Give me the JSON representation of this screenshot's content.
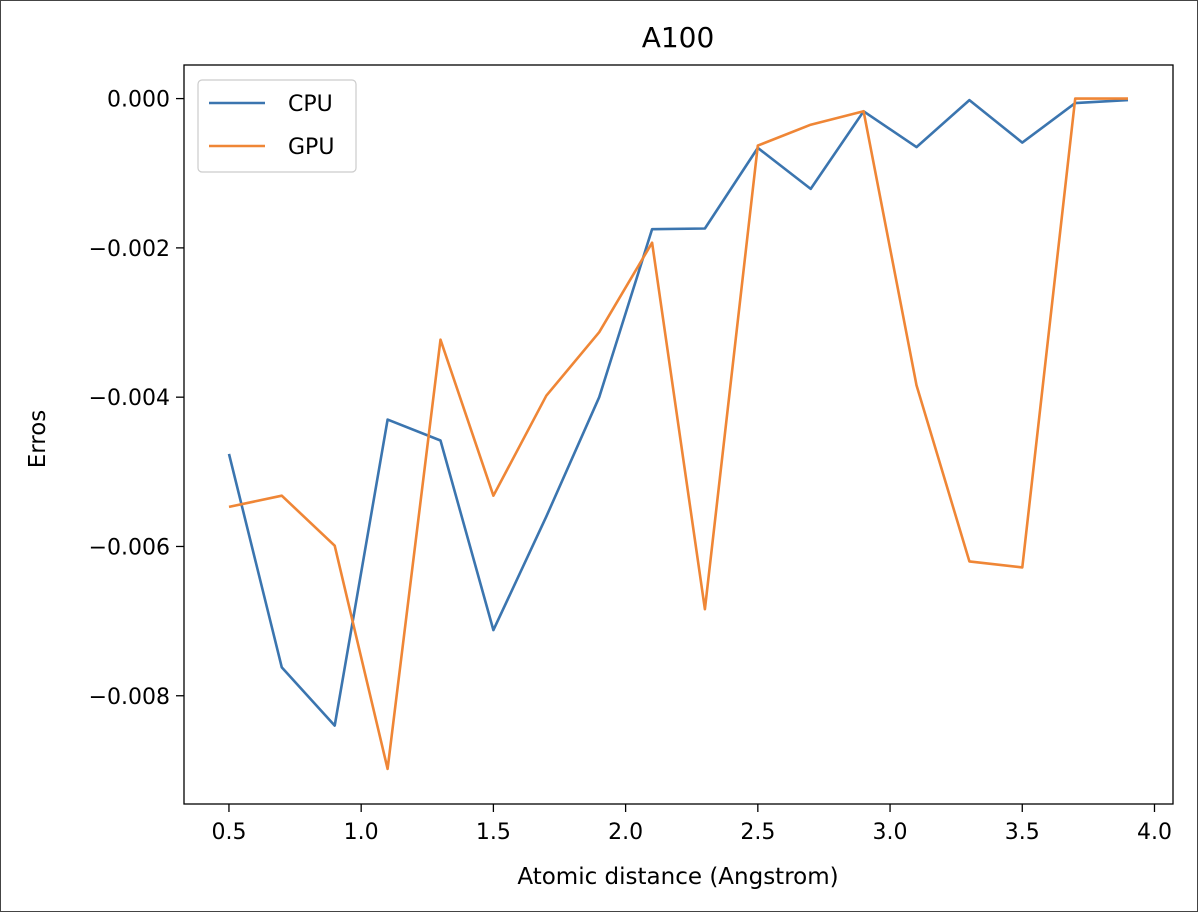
{
  "chart_data": {
    "type": "line",
    "title": "A100",
    "xlabel": "Atomic distance (Angstrom)",
    "ylabel": "Erros",
    "xlim": [
      0.33,
      4.07
    ],
    "ylim": [
      -0.00945,
      0.00045
    ],
    "xticks": [
      0.5,
      1.0,
      1.5,
      2.0,
      2.5,
      3.0,
      3.5,
      4.0
    ],
    "xtick_labels": [
      "0.5",
      "1.0",
      "1.5",
      "2.0",
      "2.5",
      "3.0",
      "3.5",
      "4.0"
    ],
    "yticks": [
      0.0,
      -0.002,
      -0.004,
      -0.006,
      -0.008
    ],
    "ytick_labels": [
      "0.000",
      "−0.002",
      "−0.004",
      "−0.006",
      "−0.008"
    ],
    "grid": false,
    "legend_position": "top-left",
    "x": [
      0.5,
      0.7,
      0.9,
      1.1,
      1.3,
      1.5,
      1.7,
      1.9,
      2.1,
      2.3,
      2.5,
      2.7,
      2.9,
      3.1,
      3.3,
      3.5,
      3.7,
      3.9
    ],
    "series": [
      {
        "name": "CPU",
        "color": "#3b75af",
        "values": [
          -0.00476,
          -0.00762,
          -0.0084,
          -0.0043,
          -0.00458,
          -0.00712,
          -0.0056,
          -0.004,
          -0.00175,
          -0.00174,
          -0.00066,
          -0.00121,
          -0.00017,
          -0.00065,
          -2e-05,
          -0.00059,
          -6e-05,
          -2e-05
        ]
      },
      {
        "name": "GPU",
        "color": "#ef8636",
        "values": [
          -0.00547,
          -0.00532,
          -0.00599,
          -0.00898,
          -0.00323,
          -0.00532,
          -0.00398,
          -0.00313,
          -0.00193,
          -0.00684,
          -0.00063,
          -0.00035,
          -0.00017,
          -0.00384,
          -0.0062,
          -0.00628,
          0.0,
          0.0
        ]
      }
    ]
  }
}
